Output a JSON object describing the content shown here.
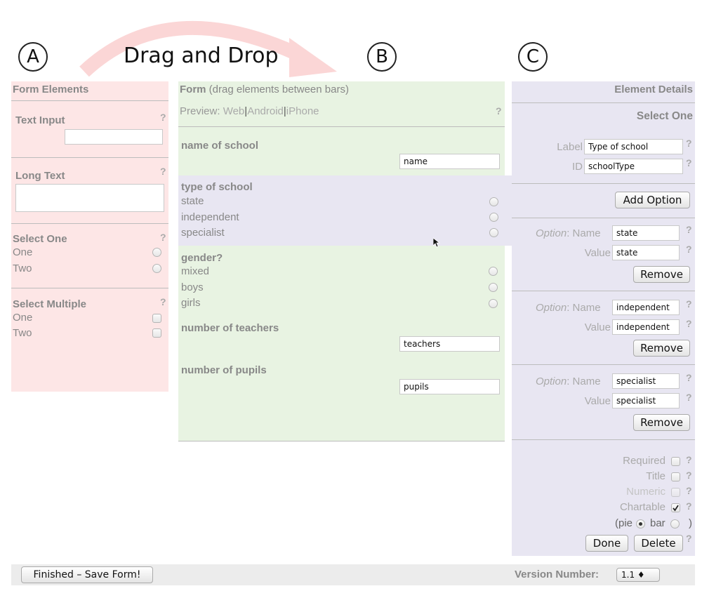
{
  "annotations": {
    "a": "A",
    "b": "B",
    "c": "C",
    "drag_label": "Drag and Drop"
  },
  "colors": {
    "panel_a": "#fde6e6",
    "panel_b": "#e8f3e2",
    "panel_c": "#e8e6f2",
    "arrow": "#fbd6d6"
  },
  "elements_panel": {
    "title": "Form Elements",
    "help": "?",
    "text_input": {
      "label": "Text Input",
      "value": ""
    },
    "long_text": {
      "label": "Long Text"
    },
    "select_one": {
      "label": "Select One",
      "options": [
        "One",
        "Two"
      ]
    },
    "select_multiple": {
      "label": "Select Multiple",
      "options": [
        "One",
        "Two"
      ]
    }
  },
  "form_panel": {
    "title": "Form",
    "title_note": "(drag elements between bars)",
    "preview_label": "Preview:",
    "preview_web": "Web",
    "preview_sep": "|",
    "preview_android": "Android",
    "preview_iphone": "iPhone",
    "help": "?",
    "fields": [
      {
        "label": "name of school",
        "input": "name"
      },
      {
        "label": "type of school",
        "options": [
          "state",
          "independent",
          "specialist"
        ]
      },
      {
        "label": "gender?",
        "options": [
          "mixed",
          "boys",
          "girls"
        ]
      },
      {
        "label": "number of teachers",
        "input": "teachers"
      },
      {
        "label": "number of pupils",
        "input": "pupils"
      }
    ]
  },
  "details_panel": {
    "title": "Element Details",
    "element_type": "Select One",
    "help": "?",
    "label_caption": "Label",
    "label_value": "Type of school",
    "id_caption": "ID",
    "id_value": "schoolType",
    "add_option": "Add Option",
    "option_caption": "Option",
    "option_name_caption": ": Name",
    "option_value_caption": "Value",
    "remove": "Remove",
    "options": [
      {
        "name": "state",
        "value": "state"
      },
      {
        "name": "independent",
        "value": "independent"
      },
      {
        "name": "specialist",
        "value": "specialist"
      }
    ],
    "required": "Required",
    "title_flag": "Title",
    "numeric": "Numeric",
    "chartable": "Chartable",
    "chart_open": "(pie",
    "chart_bar": "bar",
    "chart_close": ")",
    "done": "Done",
    "delete": "Delete"
  },
  "footer": {
    "save": "Finished – Save Form!",
    "version_label": "Version Number:",
    "version_value": "1.1 ♦"
  }
}
